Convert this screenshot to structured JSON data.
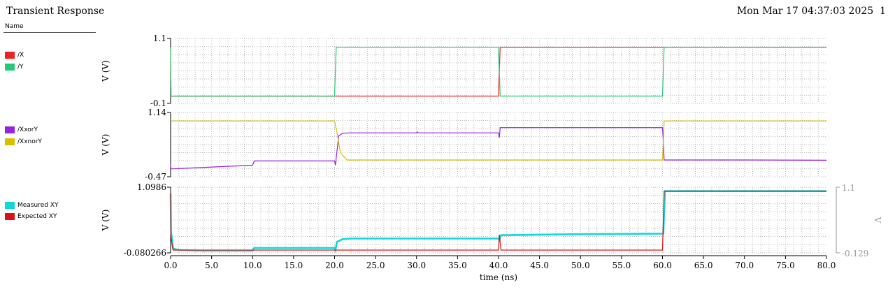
{
  "header": {
    "title": "Transient Response",
    "timestamp": "Mon Mar 17 04:37:03 2025",
    "page_number": "1",
    "name_column": "Name"
  },
  "colors": {
    "X": "#ee2222",
    "Y": "#22cc77",
    "XxorY": "#9922dd",
    "XxnorY": "#d8c000",
    "Measured XY": "#11d8d8",
    "Expected XY": "#dd1111"
  },
  "chart_data": [
    {
      "type": "line",
      "xlabel": "time (ns)",
      "ylabel": "V (V)",
      "ylim": [
        -0.1,
        1.1
      ],
      "ytick_labels": [
        "1.1",
        "-0.1"
      ],
      "grid": true,
      "legend_placement": "left",
      "series": [
        {
          "name": "/X",
          "color": "#ee2222",
          "x": [
            0,
            0.05,
            0.3,
            40,
            40.2,
            60,
            60.2,
            80
          ],
          "y": [
            1.0,
            -0.05,
            -0.05,
            -0.05,
            1.0,
            1.0,
            1.0,
            1.0
          ]
        },
        {
          "name": "/Y",
          "color": "#22cc77",
          "x": [
            0,
            0.05,
            0.3,
            20,
            20.2,
            40,
            40.2,
            60,
            60.2,
            80
          ],
          "y": [
            1.0,
            -0.05,
            -0.05,
            -0.05,
            1.0,
            1.0,
            -0.05,
            -0.05,
            1.0,
            1.0
          ]
        }
      ]
    },
    {
      "type": "line",
      "xlabel": "time (ns)",
      "ylabel": "V (V)",
      "ylim": [
        -0.47,
        1.14
      ],
      "ytick_labels": [
        "1.14",
        "-0.47"
      ],
      "grid": true,
      "legend_placement": "left",
      "series": [
        {
          "name": "/XxorY",
          "color": "#9922dd",
          "x": [
            0,
            0.05,
            0.3,
            10,
            10.2,
            20,
            20.1,
            20.5,
            21,
            22,
            30,
            30.1,
            30.2,
            40,
            40.1,
            40.2,
            60,
            60.1,
            60.2,
            70,
            80
          ],
          "y": [
            -0.25,
            -0.4,
            -0.4,
            -0.29,
            -0.16,
            -0.16,
            -0.29,
            0.6,
            0.68,
            0.69,
            0.69,
            0.72,
            0.69,
            0.69,
            0.55,
            0.85,
            0.85,
            0.45,
            -0.13,
            -0.13,
            -0.14
          ]
        },
        {
          "name": "/XxnorY",
          "color": "#d8c000",
          "x": [
            0,
            20,
            20.3,
            20.7,
            21.5,
            40,
            40.1,
            40.2,
            60,
            60.1,
            60.2,
            80
          ],
          "y": [
            1.05,
            1.05,
            0.7,
            0.1,
            -0.13,
            -0.13,
            -0.13,
            -0.13,
            -0.13,
            0.4,
            1.05,
            1.05
          ]
        }
      ]
    },
    {
      "type": "line",
      "xlabel": "time (ns)",
      "ylabel": "V (V)",
      "ylim": [
        -0.080266,
        1.0986
      ],
      "ytick_labels": [
        "1.0986",
        "-0.080266"
      ],
      "y2_tick_labels": [
        "1.1",
        "-0.129"
      ],
      "y2_label": "V",
      "grid": true,
      "legend_placement": "left",
      "x_ticks": [
        0,
        5,
        10,
        15,
        20,
        25,
        30,
        35,
        40,
        45,
        50,
        55,
        60,
        65,
        70,
        75,
        80
      ],
      "x_tick_labels": [
        "0.0",
        "5.0",
        "10.0",
        "15.0",
        "20.0",
        "25.0",
        "30.0",
        "35.0",
        "40.0",
        "45.0",
        "50.0",
        "55.0",
        "60.0",
        "65.0",
        "70.0",
        "75.0",
        "80.0"
      ],
      "series": [
        {
          "name": "Measured XY",
          "color": "#11d8d8",
          "x": [
            0,
            0.05,
            0.3,
            1,
            4,
            10,
            10.2,
            20,
            20.1,
            20.3,
            21,
            22,
            40,
            40.1,
            40.3,
            45,
            50,
            60,
            60.1,
            60.3,
            80
          ],
          "y": [
            1.0,
            0.3,
            0.0,
            -0.03,
            -0.04,
            -0.04,
            0.01,
            0.01,
            -0.03,
            0.12,
            0.17,
            0.18,
            0.18,
            0.15,
            0.24,
            0.25,
            0.26,
            0.27,
            0.27,
            1.04,
            1.04
          ]
        },
        {
          "name": "Expected XY",
          "color": "#dd1111",
          "x": [
            0,
            0.05,
            0.3,
            40,
            40.1,
            40.3,
            60,
            60.1,
            60.2,
            80
          ],
          "y": [
            1.0,
            0.2,
            -0.03,
            -0.03,
            0.25,
            -0.03,
            -0.03,
            0.5,
            1.04,
            1.04
          ]
        }
      ]
    }
  ]
}
